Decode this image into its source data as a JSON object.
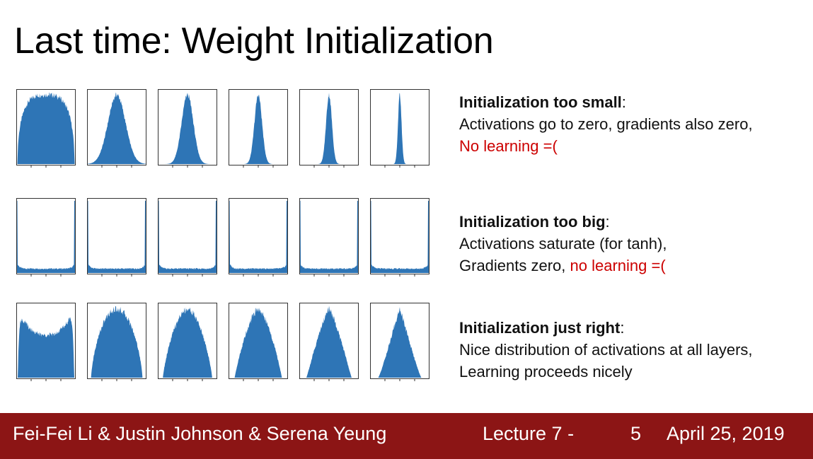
{
  "slide": {
    "title": "Last time: Weight Initialization",
    "rows": [
      {
        "id": "too-small",
        "heading": "Initialization too small",
        "heading_suffix": ":",
        "line1": "Activations go to zero, gradients also zero,",
        "line2_plain": "",
        "line2_red": "No learning =(",
        "plot_kind": "narrowing",
        "plot_widths": [
          0.46,
          0.3,
          0.2,
          0.13,
          0.1,
          0.06
        ]
      },
      {
        "id": "too-big",
        "heading": "Initialization too big",
        "heading_suffix": ":",
        "line1": "Activations saturate (for tanh),",
        "line2_plain": "Gradients zero, ",
        "line2_red": "no learning =(",
        "plot_kind": "saturated",
        "plot_widths": [
          1,
          1,
          1,
          1,
          1,
          1
        ]
      },
      {
        "id": "just-right",
        "heading": "Initialization just right",
        "heading_suffix": ":",
        "line1": "Nice distribution of activations at all layers,",
        "line2_plain": "Learning proceeds nicely",
        "line2_red": "",
        "plot_kind": "healthy",
        "plot_widths": [
          0.5,
          0.45,
          0.4,
          0.36,
          0.33,
          0.3
        ]
      }
    ]
  },
  "footer": {
    "authors": "Fei-Fei Li & Justin Johnson & Serena Yeung",
    "lecture": "Lecture 7 -",
    "page": "5",
    "date": "April 25, 2019"
  },
  "colors": {
    "histogram_fill": "#2e75b6",
    "footer_bg": "#8c1515",
    "warning_text": "#cc0000"
  }
}
